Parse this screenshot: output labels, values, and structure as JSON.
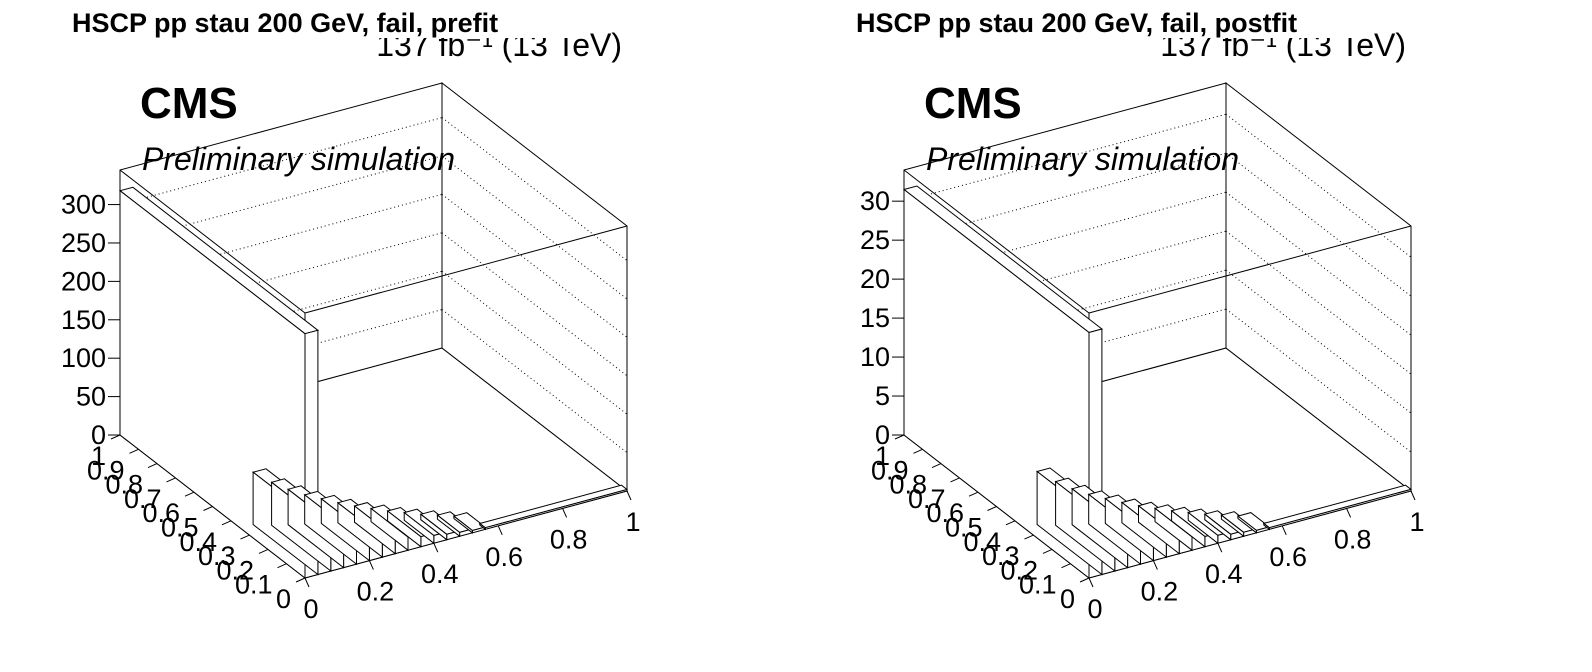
{
  "chart_data": [
    {
      "type": "lego3d",
      "title": "HSCP pp stau 200 GeV, fail, prefit",
      "lumi_label": "137 fb⁻¹ (13 TeV)",
      "experiment": "CMS",
      "status": "Preliminary simulation",
      "z_ticks": [
        "0",
        "50",
        "100",
        "150",
        "200",
        "250",
        "300"
      ],
      "zlim": [
        0,
        345
      ],
      "x_ticks": [
        "0",
        "0.2",
        "0.4",
        "0.6",
        "0.8",
        "1"
      ],
      "y_ticks": [
        "0",
        "0.1",
        "0.2",
        "0.3",
        "0.4",
        "0.5",
        "0.6",
        "0.7",
        "0.8",
        "0.9",
        "1"
      ],
      "grid": true,
      "bins": [
        {
          "x": [
            0.0,
            0.04
          ],
          "y": [
            0.0,
            1.0
          ],
          "z": 318
        },
        {
          "x": [
            0.04,
            0.08
          ],
          "y": [
            0.0,
            0.35
          ],
          "z": 68
        },
        {
          "x": [
            0.08,
            0.12
          ],
          "y": [
            0.0,
            0.32
          ],
          "z": 56
        },
        {
          "x": [
            0.12,
            0.16
          ],
          "y": [
            0.0,
            0.3
          ],
          "z": 46
        },
        {
          "x": [
            0.16,
            0.2
          ],
          "y": [
            0.0,
            0.28
          ],
          "z": 38
        },
        {
          "x": [
            0.2,
            0.24
          ],
          "y": [
            0.0,
            0.26
          ],
          "z": 32
        },
        {
          "x": [
            0.24,
            0.28
          ],
          "y": [
            0.0,
            0.24
          ],
          "z": 26
        },
        {
          "x": [
            0.28,
            0.32
          ],
          "y": [
            0.0,
            0.22
          ],
          "z": 21
        },
        {
          "x": [
            0.32,
            0.36
          ],
          "y": [
            0.0,
            0.2
          ],
          "z": 17
        },
        {
          "x": [
            0.36,
            0.4
          ],
          "y": [
            0.0,
            0.18
          ],
          "z": 13
        },
        {
          "x": [
            0.4,
            0.44
          ],
          "y": [
            0.0,
            0.16
          ],
          "z": 10
        },
        {
          "x": [
            0.44,
            0.48
          ],
          "y": [
            0.0,
            0.14
          ],
          "z": 7
        },
        {
          "x": [
            0.48,
            0.52
          ],
          "y": [
            0.0,
            0.12
          ],
          "z": 5
        },
        {
          "x": [
            0.52,
            0.56
          ],
          "y": [
            0.0,
            0.1
          ],
          "z": 3
        },
        {
          "x": [
            0.56,
            1.0
          ],
          "y": [
            0.0,
            0.03
          ],
          "z": 2
        }
      ]
    },
    {
      "type": "lego3d",
      "title": "HSCP pp stau 200 GeV, fail, postfit",
      "lumi_label": "137 fb⁻¹ (13 TeV)",
      "experiment": "CMS",
      "status": "Preliminary simulation",
      "z_ticks": [
        "0",
        "5",
        "10",
        "15",
        "20",
        "25",
        "30"
      ],
      "zlim": [
        0,
        34
      ],
      "x_ticks": [
        "0",
        "0.2",
        "0.4",
        "0.6",
        "0.8",
        "1"
      ],
      "y_ticks": [
        "0",
        "0.1",
        "0.2",
        "0.3",
        "0.4",
        "0.5",
        "0.6",
        "0.7",
        "0.8",
        "0.9",
        "1"
      ],
      "grid": true,
      "bins": [
        {
          "x": [
            0.0,
            0.04
          ],
          "y": [
            0.0,
            1.0
          ],
          "z": 31.5
        },
        {
          "x": [
            0.04,
            0.08
          ],
          "y": [
            0.0,
            0.35
          ],
          "z": 6.8
        },
        {
          "x": [
            0.08,
            0.12
          ],
          "y": [
            0.0,
            0.32
          ],
          "z": 5.6
        },
        {
          "x": [
            0.12,
            0.16
          ],
          "y": [
            0.0,
            0.3
          ],
          "z": 4.6
        },
        {
          "x": [
            0.16,
            0.2
          ],
          "y": [
            0.0,
            0.28
          ],
          "z": 3.8
        },
        {
          "x": [
            0.2,
            0.24
          ],
          "y": [
            0.0,
            0.26
          ],
          "z": 3.2
        },
        {
          "x": [
            0.24,
            0.28
          ],
          "y": [
            0.0,
            0.24
          ],
          "z": 2.6
        },
        {
          "x": [
            0.28,
            0.32
          ],
          "y": [
            0.0,
            0.22
          ],
          "z": 2.1
        },
        {
          "x": [
            0.32,
            0.36
          ],
          "y": [
            0.0,
            0.2
          ],
          "z": 1.7
        },
        {
          "x": [
            0.36,
            0.4
          ],
          "y": [
            0.0,
            0.18
          ],
          "z": 1.3
        },
        {
          "x": [
            0.4,
            0.44
          ],
          "y": [
            0.0,
            0.16
          ],
          "z": 1.0
        },
        {
          "x": [
            0.44,
            0.48
          ],
          "y": [
            0.0,
            0.14
          ],
          "z": 0.7
        },
        {
          "x": [
            0.48,
            0.52
          ],
          "y": [
            0.0,
            0.12
          ],
          "z": 0.5
        },
        {
          "x": [
            0.52,
            0.56
          ],
          "y": [
            0.0,
            0.1
          ],
          "z": 0.3
        },
        {
          "x": [
            0.56,
            1.0
          ],
          "y": [
            0.0,
            0.03
          ],
          "z": 0.2
        }
      ]
    }
  ]
}
